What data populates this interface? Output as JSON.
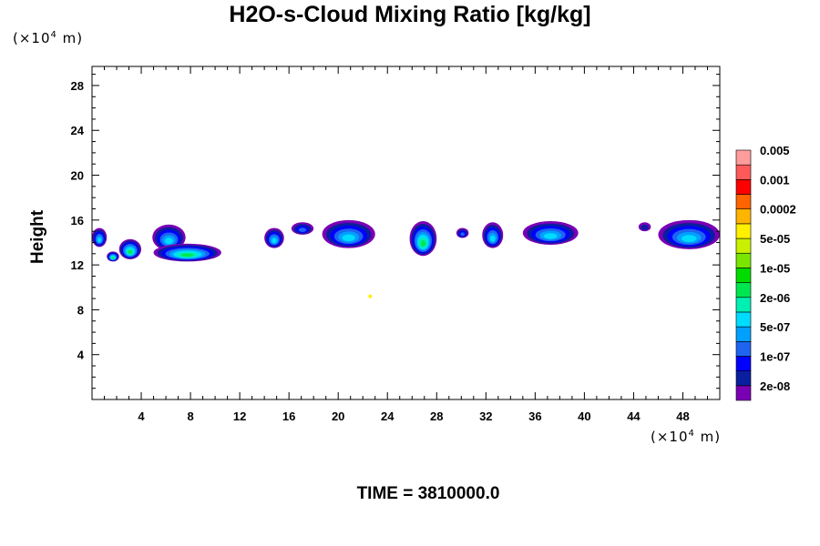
{
  "chart_data": {
    "type": "heatmap",
    "title": "H2O-s-Cloud Mixing Ratio [kg/kg]",
    "xlabel": "",
    "ylabel": "Height",
    "x_unit": "(×10⁴ m)",
    "y_unit": "(×10⁴ m)",
    "xlim": [
      0,
      51
    ],
    "ylim": [
      0,
      29.7
    ],
    "x_ticks": [
      4,
      8,
      12,
      16,
      20,
      24,
      28,
      32,
      36,
      40,
      44,
      48
    ],
    "y_ticks": [
      4,
      8,
      12,
      16,
      20,
      24,
      28
    ],
    "colorbar": {
      "colors": [
        "#7a00b4",
        "#0a1ea0",
        "#0000ff",
        "#1e64f0",
        "#00a0ff",
        "#00dcff",
        "#00f0b4",
        "#00e650",
        "#00dc00",
        "#78e600",
        "#c8f000",
        "#fff000",
        "#ffb400",
        "#ff6400",
        "#ff0000",
        "#ff5a5a",
        "#ff9c9c"
      ],
      "labels": [
        "2e-08",
        "1e-07",
        "5e-07",
        "2e-06",
        "1e-05",
        "5e-05",
        "0.0002",
        "0.001",
        "0.005"
      ]
    },
    "clouds": [
      {
        "x": [
          0,
          1.2
        ],
        "y": [
          13.6,
          15.3
        ],
        "peak": "5e-07"
      },
      {
        "x": [
          1.2,
          2.2
        ],
        "y": [
          12.3,
          13.2
        ],
        "peak": "2e-06"
      },
      {
        "x": [
          2.2,
          4.0
        ],
        "y": [
          12.5,
          14.3
        ],
        "peak": "2e-06"
      },
      {
        "x": [
          4.9,
          7.6
        ],
        "y": [
          13.3,
          15.6
        ],
        "peak": "5e-07"
      },
      {
        "x": [
          5.0,
          10.5
        ],
        "y": [
          12.3,
          13.9
        ],
        "peak": "2e-06"
      },
      {
        "x": [
          14.0,
          15.6
        ],
        "y": [
          13.5,
          15.3
        ],
        "peak": "5e-07"
      },
      {
        "x": [
          16.2,
          18.0
        ],
        "y": [
          14.7,
          15.8
        ],
        "peak": "1e-07"
      },
      {
        "x": [
          18.7,
          23.0
        ],
        "y": [
          13.5,
          16.0
        ],
        "peak": "5e-07"
      },
      {
        "x": [
          25.8,
          28.0
        ],
        "y": [
          12.8,
          15.9
        ],
        "peak": "2e-06"
      },
      {
        "x": [
          29.6,
          30.6
        ],
        "y": [
          14.4,
          15.3
        ],
        "peak": "1e-07"
      },
      {
        "x": [
          31.7,
          33.4
        ],
        "y": [
          13.5,
          15.8
        ],
        "peak": "5e-07"
      },
      {
        "x": [
          35.0,
          39.5
        ],
        "y": [
          13.8,
          15.9
        ],
        "peak": "5e-07"
      },
      {
        "x": [
          44.4,
          45.4
        ],
        "y": [
          15.0,
          15.8
        ],
        "peak": "2e-08"
      },
      {
        "x": [
          46.0,
          51.0
        ],
        "y": [
          13.4,
          16.0
        ],
        "peak": "5e-07"
      },
      {
        "x": [
          22.6,
          22.6
        ],
        "y": [
          9.2,
          9.2
        ],
        "peak": "5e-05"
      }
    ]
  },
  "footer": {
    "time_label": "TIME = 3810000.0"
  }
}
